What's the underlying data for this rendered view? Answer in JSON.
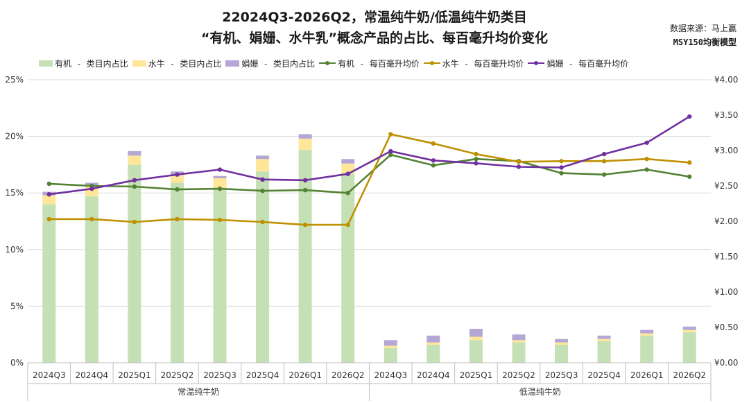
{
  "title_line1": "22024Q3-2026Q2，常温纯牛奶/低温纯牛奶类目",
  "title_line2": "“有机、娟姗、水牛乳”概念产品的占比、每百毫升均价变化",
  "source_line1": "数据来源：马上赢",
  "source_line2": "MSY150均衡模型",
  "colors": {
    "organic_bar": "#c5e0b4",
    "buffalo_bar": "#ffe699",
    "jersey_bar": "#b4a7d6",
    "organic_line": "#548235",
    "buffalo_line": "#bf9000",
    "jersey_line": "#7030a0"
  },
  "chart_data": {
    "type": "bar",
    "categories": [
      "2024Q3",
      "2024Q4",
      "2025Q1",
      "2025Q2",
      "2025Q3",
      "2025Q4",
      "2026Q1",
      "2026Q2",
      "2024Q3",
      "2024Q4",
      "2025Q1",
      "2025Q2",
      "2025Q3",
      "2025Q4",
      "2026Q1",
      "2026Q2"
    ],
    "groups": [
      {
        "label": "常温纯牛奶",
        "count": 8
      },
      {
        "label": "低温纯牛奶",
        "count": 8
      }
    ],
    "series": [
      {
        "name": "有机 - 类目内占比",
        "kind": "bar",
        "axis": "left",
        "values": [
          14.0,
          14.7,
          17.5,
          15.9,
          15.4,
          16.9,
          18.8,
          16.7,
          1.3,
          1.6,
          2.0,
          1.8,
          1.6,
          1.9,
          2.4,
          2.7
        ]
      },
      {
        "name": "水牛 - 类目内占比",
        "kind": "bar",
        "axis": "left",
        "values": [
          0.8,
          0.9,
          0.8,
          0.7,
          0.9,
          1.1,
          1.0,
          0.9,
          0.2,
          0.2,
          0.3,
          0.2,
          0.2,
          0.2,
          0.2,
          0.2
        ]
      },
      {
        "name": "娟姗 - 类目内占比",
        "kind": "bar",
        "axis": "left",
        "values": [
          0.3,
          0.3,
          0.4,
          0.3,
          0.2,
          0.3,
          0.4,
          0.4,
          0.5,
          0.6,
          0.7,
          0.5,
          0.3,
          0.3,
          0.3,
          0.3
        ]
      },
      {
        "name": "有机 - 每百毫升均价",
        "kind": "line",
        "axis": "right",
        "values": [
          2.53,
          2.5,
          2.49,
          2.45,
          2.46,
          2.43,
          2.44,
          2.4,
          2.94,
          2.79,
          2.88,
          2.85,
          2.68,
          2.66,
          2.73,
          2.63
        ]
      },
      {
        "name": "水牛 - 每百毫升均价",
        "kind": "line",
        "axis": "right",
        "values": [
          2.03,
          2.03,
          1.99,
          2.03,
          2.02,
          1.99,
          1.95,
          1.95,
          3.23,
          3.1,
          2.95,
          2.84,
          2.85,
          2.85,
          2.88,
          2.83
        ]
      },
      {
        "name": "娟姗 - 每百毫升均价",
        "kind": "line",
        "axis": "right",
        "values": [
          2.38,
          2.46,
          2.58,
          2.66,
          2.73,
          2.59,
          2.58,
          2.67,
          2.99,
          2.86,
          2.82,
          2.77,
          2.76,
          2.95,
          3.11,
          3.48
        ]
      }
    ],
    "y_left": {
      "min": 0,
      "max": 25,
      "ticks": [
        0,
        5,
        10,
        15,
        20,
        25
      ],
      "tick_labels": [
        "0%",
        "5%",
        "10%",
        "15%",
        "20%",
        "25%"
      ]
    },
    "y_right": {
      "min": 0,
      "max": 4,
      "ticks": [
        0,
        0.5,
        1,
        1.5,
        2,
        2.5,
        3,
        3.5,
        4
      ],
      "tick_labels": [
        "¥0.00",
        "¥0.50",
        "¥1.00",
        "¥1.50",
        "¥2.00",
        "¥2.50",
        "¥3.00",
        "¥3.50",
        "¥4.00"
      ]
    },
    "grid": true,
    "legend_position": "top"
  }
}
